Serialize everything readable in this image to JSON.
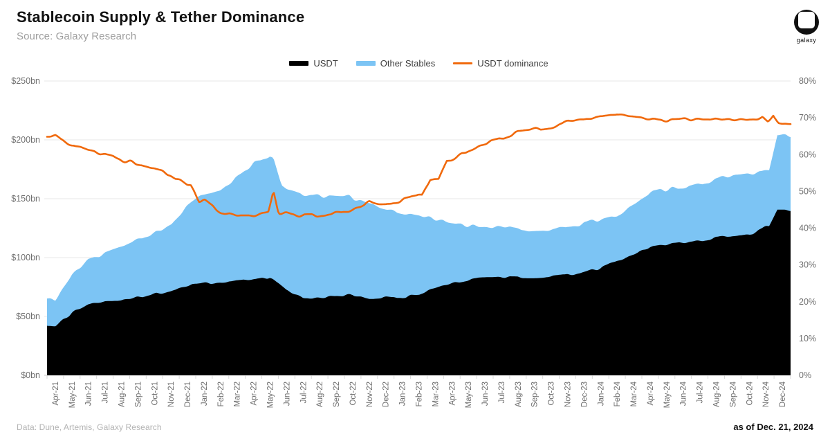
{
  "header": {
    "title": "Stablecoin Supply & Tether Dominance",
    "subtitle": "Source: Galaxy Research"
  },
  "logo": {
    "label": "galaxy"
  },
  "legend": [
    {
      "label": "USDT",
      "color": "#000000",
      "type": "area"
    },
    {
      "label": "Other Stables",
      "color": "#7CC4F4",
      "type": "area"
    },
    {
      "label": "USDT dominance",
      "color": "#F0690C",
      "type": "line"
    }
  ],
  "footer": {
    "source_note": "Data: Dune, Artemis, Galaxy Research",
    "as_of": "as of Dec. 21, 2024"
  },
  "chart_data": {
    "type": "area",
    "title": "Stablecoin Supply & Tether Dominance",
    "legend_position": "top-center",
    "grid": "horizontal",
    "categories": [
      "Apr-21",
      "May-21",
      "Jun-21",
      "Jul-21",
      "Aug-21",
      "Sep-21",
      "Oct-21",
      "Nov-21",
      "Dec-21",
      "Jan-22",
      "Feb-22",
      "Mar-22",
      "Apr-22",
      "May-22",
      "Jun-22",
      "Jul-22",
      "Aug-22",
      "Sep-22",
      "Oct-22",
      "Nov-22",
      "Dec-22",
      "Jan-23",
      "Feb-23",
      "Mar-23",
      "Apr-23",
      "May-23",
      "Jun-23",
      "Jul-23",
      "Aug-23",
      "Sep-23",
      "Oct-23",
      "Nov-23",
      "Dec-23",
      "Jan-24",
      "Feb-24",
      "Mar-24",
      "Apr-24",
      "May-24",
      "Jun-24",
      "Jul-24",
      "Aug-24",
      "Sep-24",
      "Oct-24",
      "Nov-24",
      "Dec-24"
    ],
    "series": [
      {
        "name": "USDT",
        "type": "area",
        "stacked": true,
        "axis": "left",
        "unit": "$bn",
        "color": "#000000",
        "values": [
          42,
          53,
          60,
          62,
          63,
          66,
          69,
          72,
          76,
          78,
          79,
          80,
          81,
          83,
          72,
          66,
          66,
          67.5,
          68.5,
          65,
          66,
          66.5,
          68,
          74,
          78,
          81,
          83,
          83.5,
          83,
          83,
          83.5,
          85.5,
          87.5,
          91,
          97,
          103,
          109,
          111,
          113,
          114,
          117,
          118,
          119,
          126,
          140
        ]
      },
      {
        "name": "Other Stables",
        "type": "area",
        "stacked": true,
        "axis": "left",
        "unit": "$bn",
        "color": "#7CC4F4",
        "values": [
          23,
          32,
          38,
          41,
          45,
          48,
          51,
          56,
          68,
          75,
          78,
          88,
          99,
          103,
          86,
          88,
          87,
          84.5,
          82.5,
          82,
          75,
          71.5,
          68,
          58,
          51.5,
          46.5,
          43,
          42.5,
          40.5,
          40,
          40,
          40.5,
          41.5,
          41,
          39,
          43.5,
          46,
          47,
          46,
          48,
          50,
          52,
          53,
          48,
          64
        ]
      },
      {
        "name": "USDT dominance",
        "type": "line",
        "stacked": false,
        "axis": "right",
        "unit": "%",
        "color": "#F0690C",
        "values": [
          65,
          62.5,
          61,
          60,
          58.5,
          57.5,
          56,
          54.5,
          51.5,
          47.5,
          44.5,
          43.5,
          43.3,
          44.5,
          44,
          43.3,
          43.6,
          44,
          44.8,
          46.8,
          46.5,
          47.5,
          49,
          53.5,
          58.5,
          61,
          63,
          64.5,
          66,
          66.8,
          67.5,
          69,
          69.6,
          70.6,
          71.3,
          70.4,
          69.6,
          69.4,
          69.6,
          69.6,
          69.4,
          69.4,
          69.6,
          69.5,
          68
        ]
      }
    ],
    "dominance_spikes": [
      {
        "month": "May-22",
        "peak": 50.2,
        "offset": 0.2
      },
      {
        "month": "Nov-22",
        "peak": 47.4,
        "offset": 0
      },
      {
        "month": "Nov-24",
        "peak": 70.3,
        "offset": -0.2
      },
      {
        "month": "Dec-24",
        "peak": 70.6,
        "offset": -0.55
      }
    ],
    "left_axis": {
      "min": 0,
      "max": 250,
      "ticks": [
        "$0bn",
        "$50bn",
        "$100bn",
        "$150bn",
        "$200bn",
        "$250bn"
      ]
    },
    "right_axis": {
      "min": 0,
      "max": 80,
      "ticks": [
        "0%",
        "10%",
        "20%",
        "30%",
        "40%",
        "50%",
        "60%",
        "70%",
        "80%"
      ]
    }
  }
}
